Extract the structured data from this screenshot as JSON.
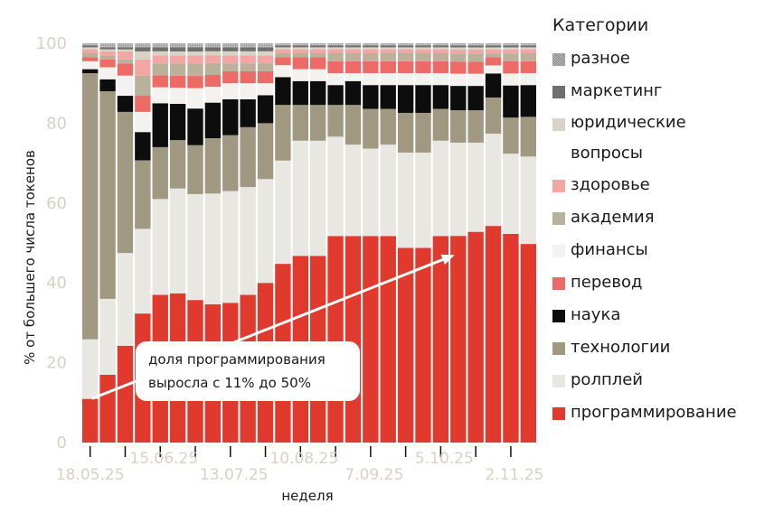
{
  "chart_data": {
    "type": "bar",
    "stacked": true,
    "ylabel": "% от большего числа токенов",
    "xlabel": "неделя",
    "ylim": [
      0,
      100
    ],
    "yticks": [
      0,
      20,
      40,
      60,
      80,
      100
    ],
    "xtick_labels": [
      "18.05.25",
      "15.06.25",
      "13.07.25",
      "10.08.25",
      "7.09.25",
      "5.10.25",
      "2.11.25"
    ],
    "categories": [
      "w1",
      "w2",
      "w3",
      "w4",
      "w5",
      "w6",
      "w7",
      "w8",
      "w9",
      "w10",
      "w11",
      "w12",
      "w13",
      "w14",
      "w15",
      "w16",
      "w17",
      "w18",
      "w19",
      "w20",
      "w21",
      "w22",
      "w23",
      "w24",
      "w25",
      "w26"
    ],
    "series": [
      {
        "name": "программирование",
        "color": "#e03a2f",
        "values": [
          11,
          17,
          24,
          32,
          37,
          37,
          35,
          35,
          35,
          37,
          40,
          45,
          47,
          47,
          52,
          52,
          52,
          52,
          49,
          49,
          52,
          51,
          52,
          54,
          52,
          50
        ]
      },
      {
        "name": "ролплей",
        "color": "#e9e7e2",
        "values": [
          15,
          19,
          23,
          21,
          24,
          26,
          26,
          28,
          28,
          27,
          26,
          26,
          29,
          29,
          25,
          23,
          22,
          23,
          24,
          24,
          24,
          23,
          22,
          23,
          20,
          22
        ]
      },
      {
        "name": "технологии",
        "color": "#a09880",
        "values": [
          67,
          52,
          35,
          17,
          13,
          12,
          12,
          14,
          14,
          15,
          14,
          14,
          9,
          9,
          8,
          10,
          10,
          9,
          10,
          10,
          8,
          8,
          8,
          9,
          9,
          10
        ]
      },
      {
        "name": "наука",
        "color": "#0d0d0d",
        "values": [
          1,
          3,
          4,
          7,
          11,
          9,
          9,
          9,
          9,
          7,
          7,
          7,
          6,
          6,
          5,
          6,
          6,
          6,
          7,
          7,
          6,
          6,
          6,
          6,
          8,
          8
        ]
      },
      {
        "name": "финансы",
        "color": "#f4f2ef",
        "values": [
          2,
          3,
          5,
          5,
          4,
          4,
          5,
          4,
          4,
          4,
          3,
          3,
          3,
          3,
          3,
          2,
          3,
          3,
          3,
          3,
          3,
          3,
          3,
          2,
          3,
          3
        ]
      },
      {
        "name": "перевод",
        "color": "#ec6b67",
        "values": [
          1,
          2,
          3,
          4,
          3,
          3,
          3,
          3,
          3,
          3,
          3,
          2,
          3,
          3,
          3,
          3,
          3,
          3,
          3,
          3,
          3,
          3,
          3,
          2,
          3,
          3
        ]
      },
      {
        "name": "академия",
        "color": "#b9b19c",
        "values": [
          1,
          1,
          1,
          5,
          3,
          3,
          3,
          3,
          2,
          2,
          2,
          1,
          1,
          1,
          2,
          2,
          2,
          2,
          2,
          2,
          2,
          2,
          2,
          1,
          2,
          2
        ]
      },
      {
        "name": "здоровье",
        "color": "#f2a7a4",
        "values": [
          1,
          1,
          2,
          4,
          2,
          2,
          2,
          2,
          2,
          2,
          2,
          1,
          1,
          1,
          1,
          1,
          1,
          1,
          1,
          1,
          1,
          1,
          1,
          1,
          1,
          1
        ]
      },
      {
        "name": "юридические вопросы",
        "color": "#d9d3c6",
        "values": [
          0.5,
          0.5,
          0.5,
          2,
          1,
          1,
          1,
          1,
          1,
          1,
          1,
          0.5,
          0.5,
          0.5,
          0.5,
          0.5,
          0.5,
          0.5,
          0.5,
          0.5,
          0.5,
          0.5,
          0.5,
          0.5,
          0.5,
          0.5
        ]
      },
      {
        "name": "маркетинг",
        "color": "#6f6f6f",
        "values": [
          0.5,
          0.5,
          0.5,
          1,
          1,
          1,
          1,
          1,
          1,
          1,
          1,
          0.5,
          0.5,
          0.5,
          0.5,
          0.5,
          0.5,
          0.5,
          0.5,
          0.5,
          0.5,
          0.5,
          0.5,
          0.5,
          0.5,
          0.5
        ]
      },
      {
        "name": "разное",
        "color": "#a8a8a8",
        "values": [
          0.5,
          1,
          1,
          1,
          1,
          1,
          1,
          1,
          1,
          1,
          1,
          0.5,
          0.5,
          0.5,
          0.5,
          0.5,
          0.5,
          0.5,
          0.5,
          0.5,
          0.5,
          0.5,
          0.5,
          0.5,
          0.5,
          0.5
        ]
      }
    ],
    "legend_title": "Категории",
    "legend_items": [
      {
        "label": "разное",
        "color": "#a8a8a8",
        "pattern": true
      },
      {
        "label": "маркетинг",
        "color": "#6f6f6f"
      },
      {
        "label_line1": "юридические",
        "label_line2": "вопросы",
        "color": "#d9d3c6"
      },
      {
        "label": "здоровье",
        "color": "#f2a7a4"
      },
      {
        "label": "академия",
        "color": "#b9b19c"
      },
      {
        "label": "финансы",
        "color": "#f4f2ef"
      },
      {
        "label": "перевод",
        "color": "#ec6b67"
      },
      {
        "label": "наука",
        "color": "#0d0d0d"
      },
      {
        "label": "технологии",
        "color": "#a09880"
      },
      {
        "label": "ролплей",
        "color": "#e9e7e2"
      },
      {
        "label": "программирование",
        "color": "#e03a2f"
      }
    ],
    "annotation": {
      "line1": "доля программирования",
      "line2": "выросла с 11% до 50%",
      "arrow_from": {
        "category": "w1",
        "value": 11
      },
      "arrow_to": {
        "category": "w22",
        "value": 47
      }
    }
  }
}
